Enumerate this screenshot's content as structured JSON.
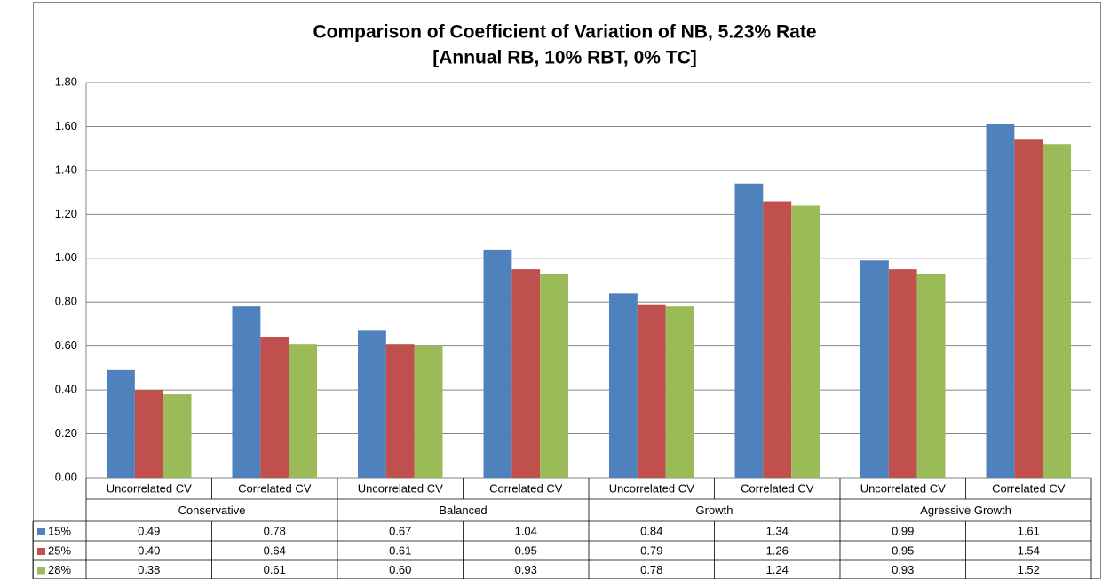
{
  "chart_data": {
    "type": "bar",
    "title": "Comparison  of Coefficient of Variation of NB, 5.23% Rate",
    "subtitle": "[Annual RB, 10% RBT, 0% TC]",
    "categories": [
      "Uncorrelated CV",
      "Correlated CV",
      "Uncorrelated CV",
      "Correlated CV",
      "Uncorrelated CV",
      "Correlated CV",
      "Uncorrelated CV",
      "Correlated CV"
    ],
    "groups": [
      "Conservative",
      "Balanced",
      "Growth",
      "Agressive Growth"
    ],
    "series": [
      {
        "name": "15%",
        "color": "#4f81bd",
        "values": [
          0.49,
          0.78,
          0.67,
          1.04,
          0.84,
          1.34,
          0.99,
          1.61
        ],
        "value_labels": [
          "0.49",
          "0.78",
          "0.67",
          "1.04",
          "0.84",
          "1.34",
          "0.99",
          "1.61"
        ]
      },
      {
        "name": "25%",
        "color": "#c0504d",
        "values": [
          0.4,
          0.64,
          0.61,
          0.95,
          0.79,
          1.26,
          0.95,
          1.54
        ],
        "value_labels": [
          "0.40",
          "0.64",
          "0.61",
          "0.95",
          "0.79",
          "1.26",
          "0.95",
          "1.54"
        ]
      },
      {
        "name": "28%",
        "color": "#9bbb59",
        "values": [
          0.38,
          0.61,
          0.6,
          0.93,
          0.78,
          1.24,
          0.93,
          1.52
        ],
        "value_labels": [
          "0.38",
          "0.61",
          "0.60",
          "0.93",
          "0.78",
          "1.24",
          "0.93",
          "1.52"
        ]
      }
    ],
    "ylim": [
      0,
      1.8
    ],
    "yticks": [
      {
        "value": 0,
        "label": "0.00"
      },
      {
        "value": 0.2,
        "label": "0.20"
      },
      {
        "value": 0.4,
        "label": "0.40"
      },
      {
        "value": 0.6,
        "label": "0.60"
      },
      {
        "value": 0.8,
        "label": "0.80"
      },
      {
        "value": 1.0,
        "label": "1.00"
      },
      {
        "value": 1.2,
        "label": "1.20"
      },
      {
        "value": 1.4,
        "label": "1.40"
      },
      {
        "value": 1.6,
        "label": "1.60"
      },
      {
        "value": 1.8,
        "label": "1.80"
      }
    ],
    "grid": true
  }
}
